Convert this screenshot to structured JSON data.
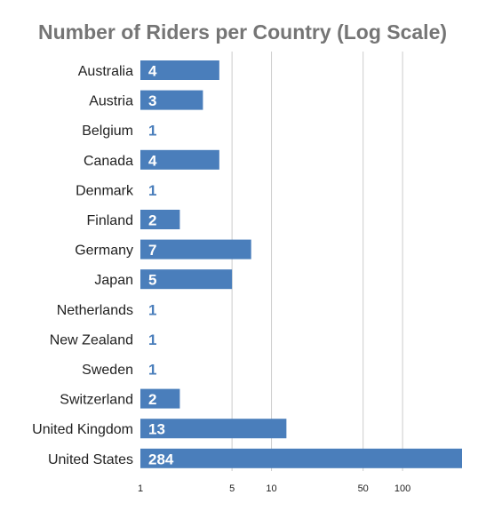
{
  "chart_data": {
    "type": "bar",
    "orientation": "horizontal",
    "title": "Number of Riders per Country (Log Scale)",
    "xlabel": "",
    "ylabel": "",
    "x_scale": "log",
    "xlim": [
      1,
      284
    ],
    "x_ticks": [
      1,
      5,
      10,
      50,
      100
    ],
    "grid": true,
    "legend": "none",
    "categories": [
      "Australia",
      "Austria",
      "Belgium",
      "Canada",
      "Denmark",
      "Finland",
      "Germany",
      "Japan",
      "Netherlands",
      "New Zealand",
      "Sweden",
      "Switzerland",
      "United Kingdom",
      "United States"
    ],
    "values": [
      4,
      3,
      1,
      4,
      1,
      2,
      7,
      5,
      1,
      1,
      1,
      2,
      13,
      284
    ],
    "colors": {
      "bar": "#4a7ebb",
      "label_inside": "#ffffff",
      "label_outside": "#4a7ebb",
      "grid": "#cccccc",
      "title": "#757575"
    }
  }
}
